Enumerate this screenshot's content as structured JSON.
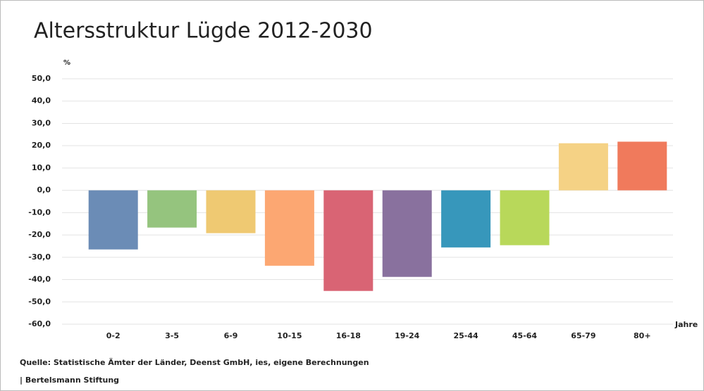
{
  "chart_data": {
    "type": "bar",
    "title": "Altersstruktur Lügde 2012-2030",
    "y_label": "%",
    "x_label": "Jahre",
    "categories": [
      "0-2",
      "3-5",
      "6-9",
      "10-15",
      "16-18",
      "19-24",
      "25-44",
      "45-64",
      "65-79",
      "80+"
    ],
    "values": [
      -26.5,
      -16.7,
      -19.2,
      -33.8,
      -45.1,
      -38.8,
      -25.6,
      -24.6,
      21.1,
      21.8
    ],
    "colors": [
      "#6b8cb6",
      "#95c47e",
      "#efc972",
      "#fca772",
      "#d96474",
      "#89719e",
      "#3797bb",
      "#b8d85a",
      "#f5d285",
      "#f07a5c"
    ],
    "ylim": [
      -60,
      50
    ],
    "yticks": [
      {
        "value": -60,
        "label": "-60,0"
      },
      {
        "value": -50,
        "label": "-50,0"
      },
      {
        "value": -40,
        "label": "-40,0"
      },
      {
        "value": -30,
        "label": "-30,0"
      },
      {
        "value": -20,
        "label": "-20,0"
      },
      {
        "value": -10,
        "label": "-10,0"
      },
      {
        "value": 0,
        "label": "0,0"
      },
      {
        "value": 10,
        "label": "10,0"
      },
      {
        "value": 20,
        "label": "20,0"
      },
      {
        "value": 30,
        "label": "30,0"
      },
      {
        "value": 40,
        "label": "40,0"
      },
      {
        "value": 50,
        "label": "50,0"
      }
    ],
    "grid": true,
    "source": "Quelle: Statistische Ämter der Länder, Deenst GmbH, ies, eigene Berechnungen",
    "credit": "| Bertelsmann Stiftung"
  }
}
